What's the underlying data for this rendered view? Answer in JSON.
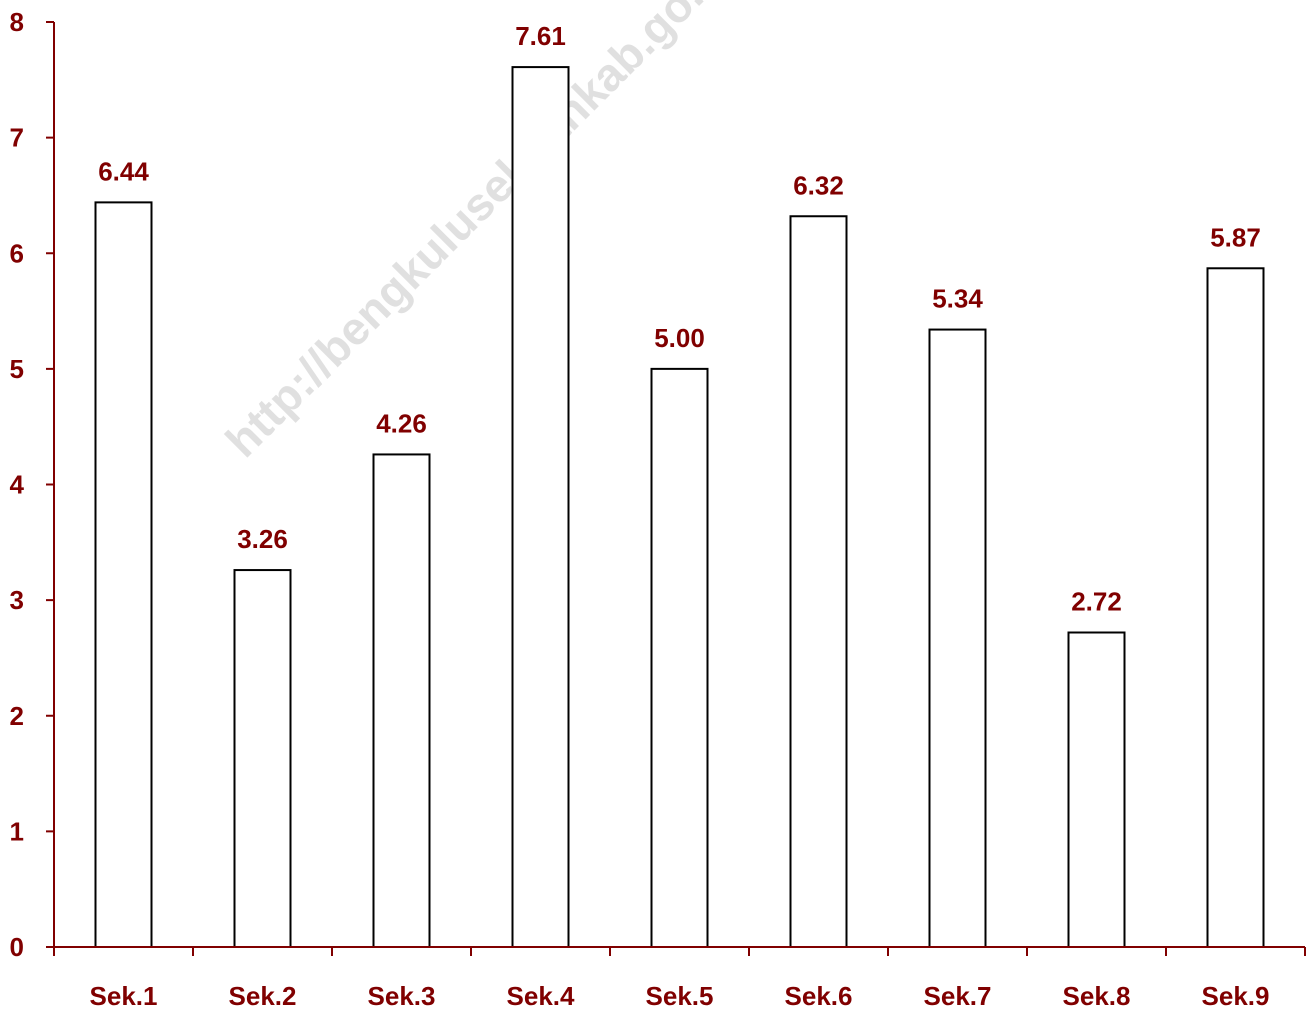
{
  "watermark": "http://bengkuluselatankab.go.id",
  "colors": {
    "text": "#800000",
    "axis": "#800000",
    "bar_fill": "#ffffff",
    "bar_stroke": "#000000",
    "watermark": "#c8c8c8"
  },
  "chart_data": {
    "type": "bar",
    "title": "",
    "xlabel": "",
    "ylabel": "",
    "categories": [
      "Sek.1",
      "Sek.2",
      "Sek.3",
      "Sek.4",
      "Sek.5",
      "Sek.6",
      "Sek.7",
      "Sek.8",
      "Sek.9"
    ],
    "values": [
      6.44,
      3.26,
      4.26,
      7.61,
      5.0,
      6.32,
      5.34,
      2.72,
      5.87
    ],
    "value_labels": [
      "6.44",
      "3.26",
      "4.26",
      "7.61",
      "5.00",
      "6.32",
      "5.34",
      "2.72",
      "5.87"
    ],
    "ylim": [
      0,
      8
    ],
    "yticks": [
      0,
      1,
      2,
      3,
      4,
      5,
      6,
      7,
      8
    ],
    "grid": false,
    "legend": "none"
  }
}
